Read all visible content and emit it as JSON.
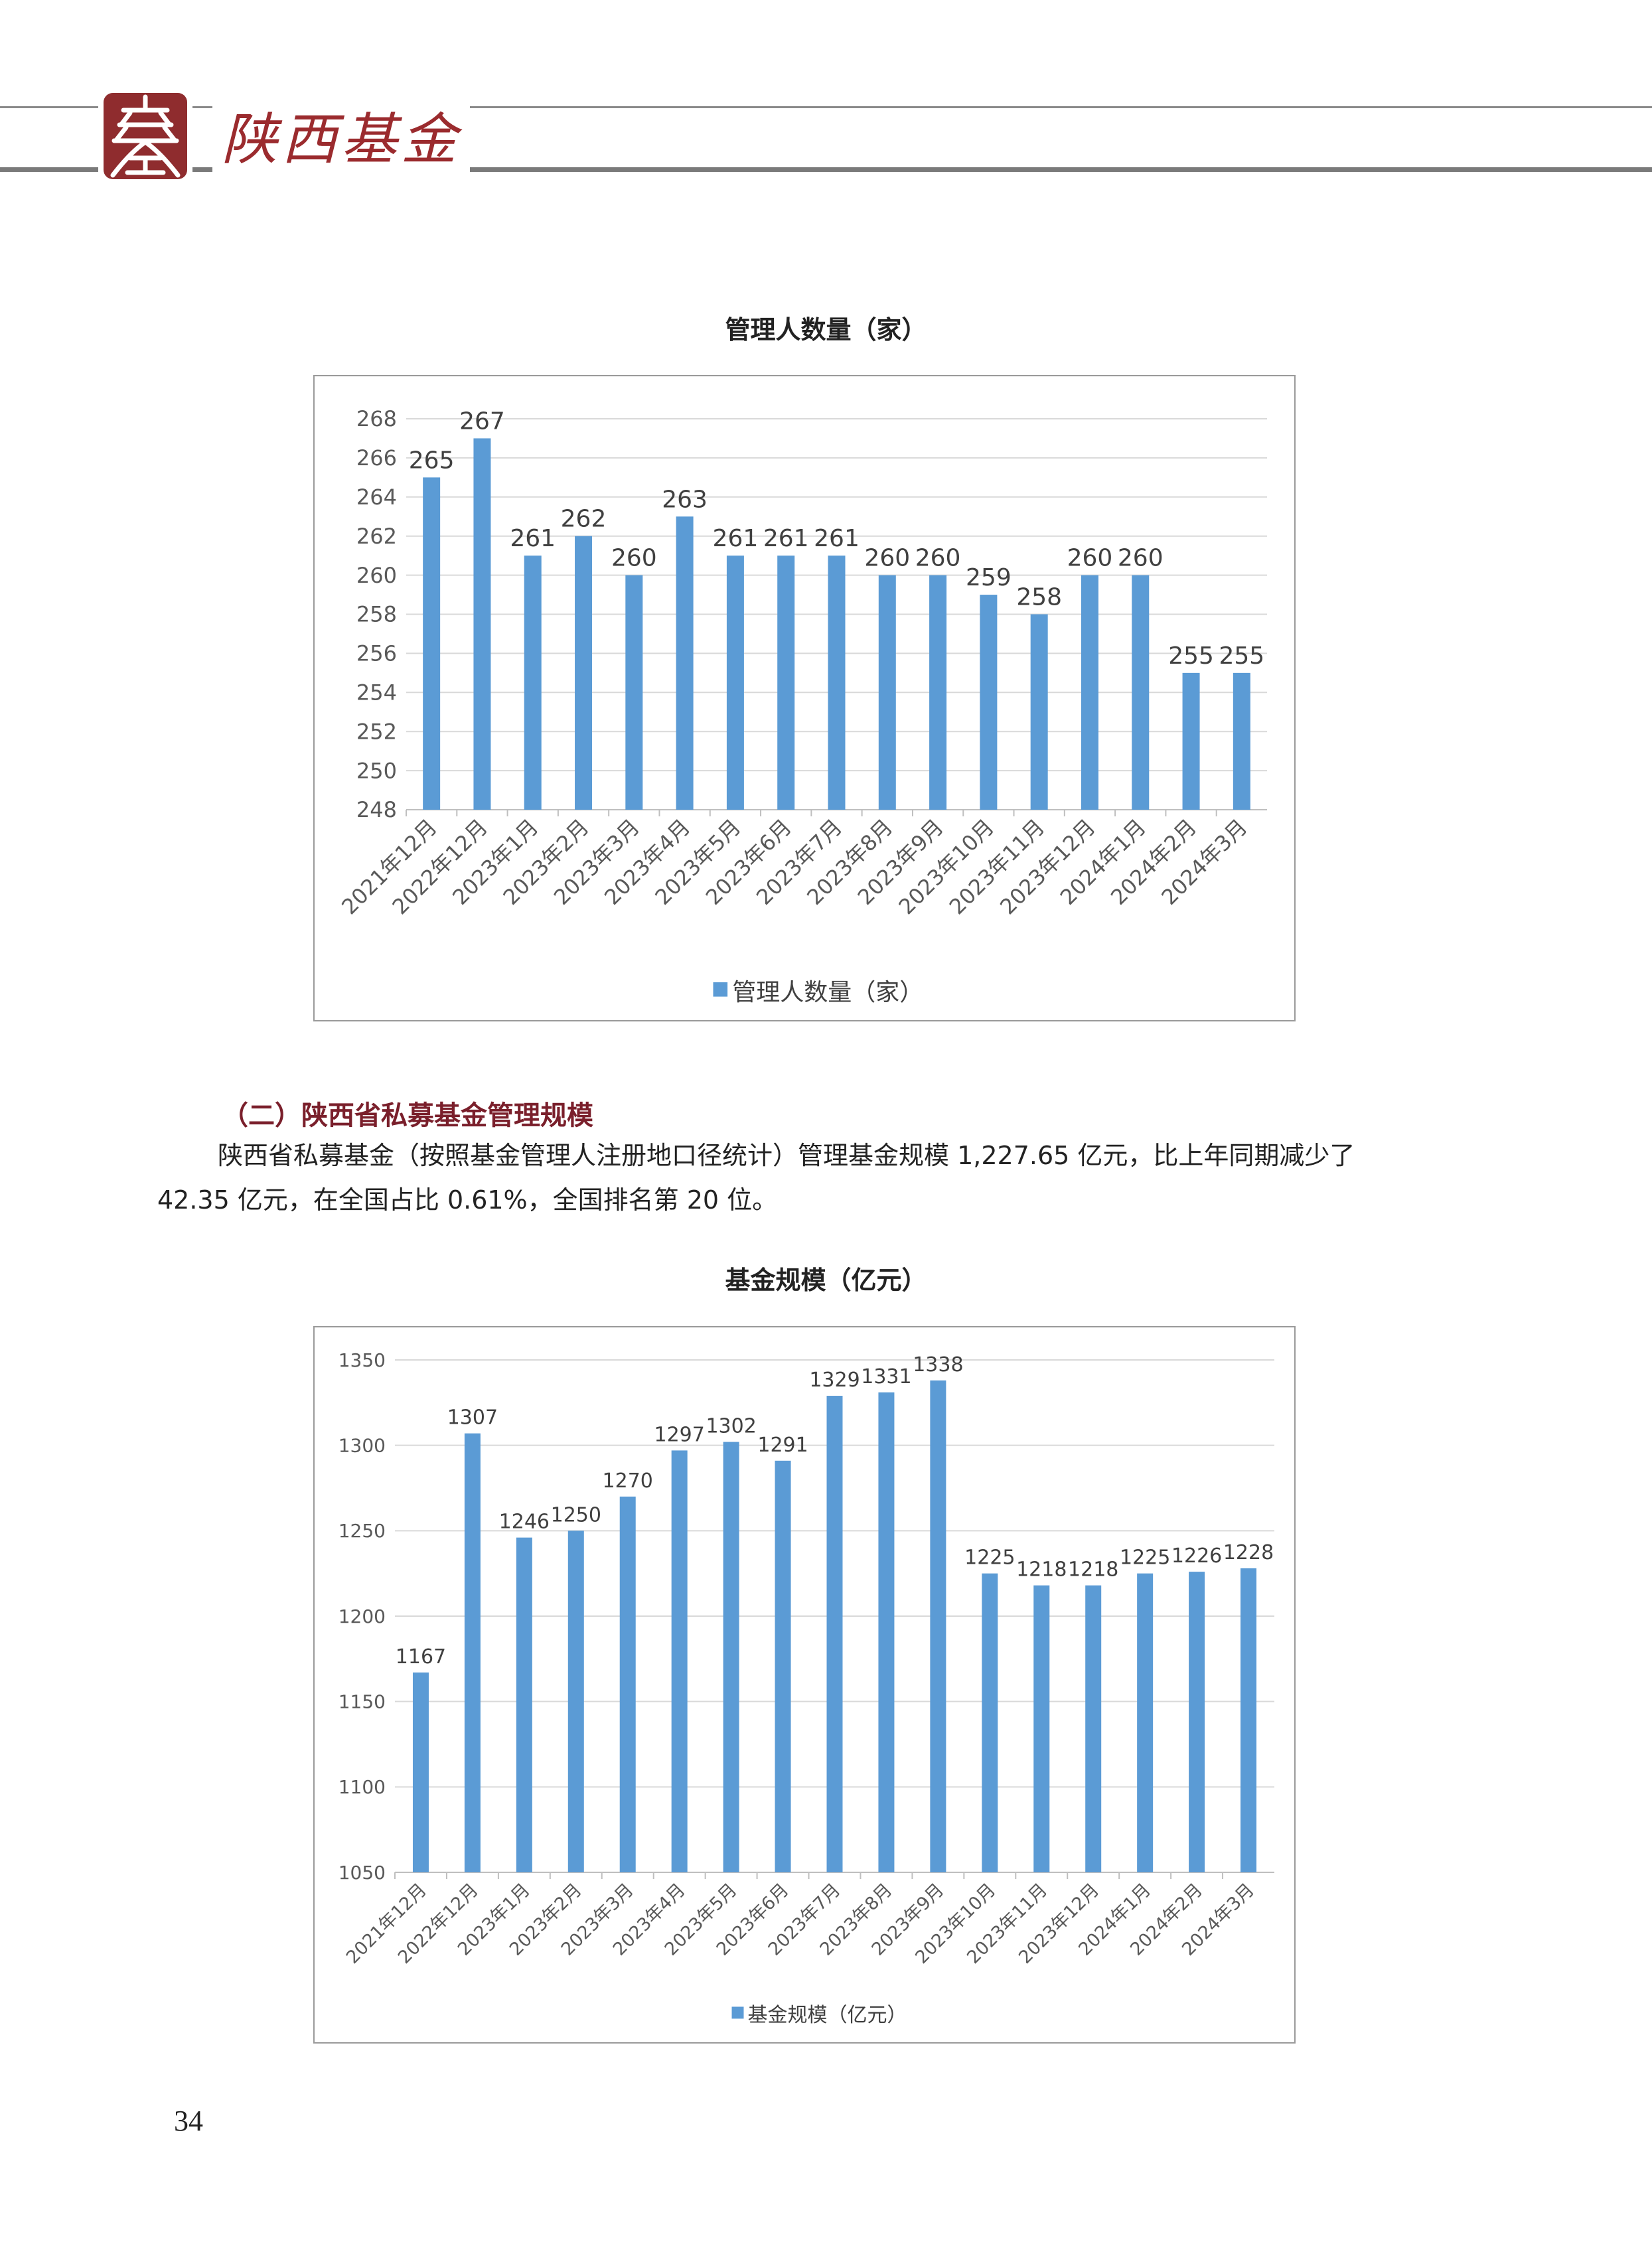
{
  "header": {
    "logo_text": "陕西基金"
  },
  "section": {
    "heading": "（二）陕西省私募基金管理规模",
    "paragraph_line1": "陕西省私募基金（按照基金管理人注册地口径统计）管理基金规模 1,227.65 亿元，比上年同期减少了",
    "paragraph_line2": "42.35 亿元，在全国占比 0.61%，全国排名第 20 位。"
  },
  "page_number": "34",
  "colors": {
    "bar": "#5b9bd5",
    "grid": "#d9d9d9",
    "heading": "#7a1f2b"
  },
  "chart_data": [
    {
      "type": "bar",
      "title": "管理人数量（家）",
      "categories": [
        "2021年12月",
        "2022年12月",
        "2023年1月",
        "2023年2月",
        "2023年3月",
        "2023年4月",
        "2023年5月",
        "2023年6月",
        "2023年7月",
        "2023年8月",
        "2023年9月",
        "2023年10月",
        "2023年11月",
        "2023年12月",
        "2024年1月",
        "2024年2月",
        "2024年3月"
      ],
      "values": [
        265,
        267,
        261,
        262,
        260,
        263,
        261,
        261,
        261,
        260,
        260,
        259,
        258,
        260,
        260,
        255,
        255
      ],
      "ylim": [
        248,
        268
      ],
      "yticks": [
        248,
        250,
        252,
        254,
        256,
        258,
        260,
        262,
        264,
        266,
        268
      ],
      "legend": "管理人数量（家）",
      "legend_position": "bottom",
      "grid": true,
      "xlabel": "",
      "ylabel": ""
    },
    {
      "type": "bar",
      "title": "基金规模（亿元）",
      "categories": [
        "2021年12月",
        "2022年12月",
        "2023年1月",
        "2023年2月",
        "2023年3月",
        "2023年4月",
        "2023年5月",
        "2023年6月",
        "2023年7月",
        "2023年8月",
        "2023年9月",
        "2023年10月",
        "2023年11月",
        "2023年12月",
        "2024年1月",
        "2024年2月",
        "2024年3月"
      ],
      "values": [
        1167,
        1307,
        1246,
        1250,
        1270,
        1297,
        1302,
        1291,
        1329,
        1331,
        1338,
        1225,
        1218,
        1218,
        1225,
        1226,
        1228
      ],
      "ylim": [
        1050,
        1350
      ],
      "yticks": [
        1050,
        1100,
        1150,
        1200,
        1250,
        1300,
        1350
      ],
      "legend": "基金规模（亿元）",
      "legend_position": "bottom",
      "grid": true,
      "xlabel": "",
      "ylabel": ""
    }
  ]
}
